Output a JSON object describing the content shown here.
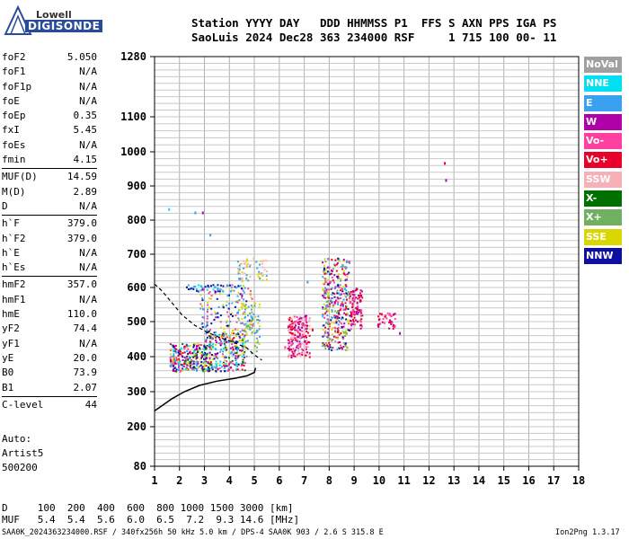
{
  "logo": {
    "line1": "Lowell",
    "line2": "DIGISONDE"
  },
  "header": {
    "line1": "Station YYYY DAY   DDD HHMMSS P1  FFS S AXN PPS IGA PS",
    "line2": "SaoLuis 2024 Dec28 363 234000 RSF     1 715 100 00- 11"
  },
  "params": [
    {
      "k": "foF2",
      "v": "5.050"
    },
    {
      "k": "foF1",
      "v": "N/A"
    },
    {
      "k": "foF1p",
      "v": "N/A"
    },
    {
      "k": "foE",
      "v": "N/A"
    },
    {
      "k": "foEp",
      "v": "0.35"
    },
    {
      "k": "fxI",
      "v": "5.45"
    },
    {
      "k": "foEs",
      "v": "N/A"
    },
    {
      "k": "fmin",
      "v": "4.15"
    },
    {
      "k": "MUF(D)",
      "v": "14.59"
    },
    {
      "k": "M(D)",
      "v": "2.89"
    },
    {
      "k": "D",
      "v": "N/A"
    },
    {
      "k": "h`F",
      "v": "379.0"
    },
    {
      "k": "h`F2",
      "v": "379.0"
    },
    {
      "k": "h`E",
      "v": "N/A"
    },
    {
      "k": "h`Es",
      "v": "N/A"
    },
    {
      "k": "hmF2",
      "v": "357.0"
    },
    {
      "k": "hmF1",
      "v": "N/A"
    },
    {
      "k": "hmE",
      "v": "110.0"
    },
    {
      "k": "yF2",
      "v": "74.4"
    },
    {
      "k": "yF1",
      "v": "N/A"
    },
    {
      "k": "yE",
      "v": "20.0"
    },
    {
      "k": "B0",
      "v": "73.9"
    },
    {
      "k": "B1",
      "v": "2.07"
    },
    {
      "k": "C-level",
      "v": "44"
    }
  ],
  "auto": {
    "line1": "Auto:",
    "line2": "Artist5",
    "line3": "500200"
  },
  "legend": [
    {
      "label": "NoVal",
      "color": "#a0a0a0"
    },
    {
      "label": "NNE",
      "color": "#00e0f0"
    },
    {
      "label": "E",
      "color": "#3aa0f0"
    },
    {
      "label": "W",
      "color": "#b000a8"
    },
    {
      "label": "Vo-",
      "color": "#ff40a0"
    },
    {
      "label": "Vo+",
      "color": "#e8002a"
    },
    {
      "label": "SSW",
      "color": "#f8b0b8"
    },
    {
      "label": "X-",
      "color": "#007000"
    },
    {
      "label": "X+",
      "color": "#70b060"
    },
    {
      "label": "SSE",
      "color": "#d8d800"
    },
    {
      "label": "NNW",
      "color": "#1010a0"
    }
  ],
  "footer": {
    "d_row": "D     100  200  400  600  800 1000 1500 3000 [km]",
    "muf_row": "MUF   5.4  5.4  5.6  6.0  6.5  7.2  9.3 14.6 [MHz]",
    "info": "SAA0K_2024363234000.RSF / 340fx256h 50 kHz 5.0 km / DPS-4 SAA0K 903 / 2.6 S 315.8 E",
    "version": "Ion2Png 1.3.17"
  },
  "chart_data": {
    "type": "scatter",
    "title": "",
    "xlabel": "",
    "ylabel": "",
    "xlim": [
      1,
      18
    ],
    "ylim": [
      80,
      1280
    ],
    "x_ticks": [
      1,
      2,
      3,
      4,
      5,
      6,
      7,
      8,
      9,
      10,
      11,
      12,
      13,
      14,
      15,
      16,
      17,
      18
    ],
    "y_ticks": [
      80,
      200,
      300,
      400,
      500,
      600,
      700,
      800,
      900,
      1000,
      1100,
      1280
    ],
    "grid": true,
    "series": [
      {
        "name": "NNE",
        "color": "#00e0f0",
        "points": [
          [
            1.55,
            835
          ],
          [
            4.5,
            440
          ],
          [
            7.7,
            520
          ],
          [
            8.6,
            600
          ],
          [
            3.4,
            605
          ]
        ]
      },
      {
        "name": "E",
        "color": "#3aa0f0",
        "points": [
          [
            2.6,
            825
          ],
          [
            3.2,
            760
          ],
          [
            7.1,
            620
          ],
          [
            3.5,
            600
          ],
          [
            4.4,
            630
          ]
        ]
      },
      {
        "name": "W",
        "color": "#b000a8",
        "points": [
          [
            2.9,
            825
          ],
          [
            12.65,
            920
          ],
          [
            10.8,
            470
          ],
          [
            8.2,
            560
          ]
        ]
      },
      {
        "name": "Vo+",
        "color": "#e8002a",
        "points": [
          [
            12.6,
            970
          ],
          [
            9.1,
            540
          ],
          [
            7.3,
            480
          ]
        ]
      },
      {
        "name": "Vo-",
        "color": "#ff40a0",
        "points": [
          [
            8.0,
            620
          ],
          [
            6.2,
            430
          ]
        ]
      }
    ],
    "trace_fitted_profile": {
      "x": [
        1.0,
        1.3,
        1.7,
        2.2,
        2.8,
        3.5,
        4.2,
        4.7,
        5.0,
        5.05
      ],
      "y": [
        245,
        260,
        280,
        300,
        318,
        330,
        338,
        345,
        355,
        368
      ]
    },
    "trace_ordinary": {
      "x": [
        1.0,
        1.3,
        1.7,
        2.1,
        2.6,
        3.1,
        3.6,
        4.2,
        4.7,
        5.0,
        5.3
      ],
      "y": [
        610,
        590,
        555,
        520,
        490,
        470,
        455,
        440,
        425,
        405,
        390
      ]
    }
  }
}
